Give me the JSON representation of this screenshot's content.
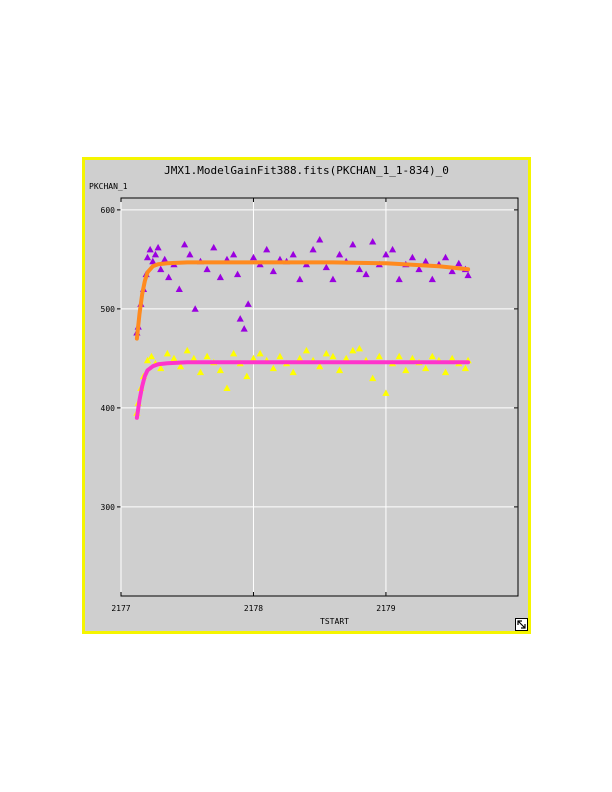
{
  "window": {
    "title": "JMX1.ModelGainFit388.fits(PKCHAN_1_1-834)_0"
  },
  "icons": {
    "resize": "resize-arrow-icon"
  },
  "chart_data": {
    "type": "scatter",
    "title": "JMX1.ModelGainFit388.fits(PKCHAN_1_1-834)_0",
    "xlabel": "TSTART",
    "ylabel": "PKCHAN_1",
    "xlim": [
      2177,
      2179.997
    ],
    "ylim": [
      210,
      612
    ],
    "xticks": [
      2177,
      2178,
      2179
    ],
    "xtick_labels": [
      "2177",
      "2178",
      "2179"
    ],
    "yticks": [
      300,
      400,
      500,
      600
    ],
    "ytick_labels": [
      "300",
      "400",
      "500",
      "600"
    ],
    "grid": true,
    "series": [
      {
        "marker": "triangle",
        "color": "#9a00e0",
        "x": [
          2177.12,
          2177.13,
          2177.15,
          2177.17,
          2177.19,
          2177.2,
          2177.22,
          2177.24,
          2177.26,
          2177.28,
          2177.3,
          2177.33,
          2177.36,
          2177.4,
          2177.44,
          2177.48,
          2177.52,
          2177.56,
          2177.6,
          2177.65,
          2177.7,
          2177.75,
          2177.8,
          2177.85,
          2177.88,
          2177.9,
          2177.93,
          2177.96,
          2178.0,
          2178.05,
          2178.1,
          2178.15,
          2178.2,
          2178.25,
          2178.3,
          2178.35,
          2178.4,
          2178.45,
          2178.5,
          2178.55,
          2178.6,
          2178.65,
          2178.7,
          2178.75,
          2178.8,
          2178.85,
          2178.9,
          2178.95,
          2179.0,
          2179.05,
          2179.1,
          2179.15,
          2179.2,
          2179.25,
          2179.3,
          2179.35,
          2179.4,
          2179.45,
          2179.5,
          2179.55,
          2179.6,
          2179.62
        ],
        "y": [
          476,
          482,
          505,
          520,
          535,
          552,
          560,
          548,
          555,
          562,
          540,
          550,
          532,
          545,
          520,
          565,
          555,
          500,
          548,
          540,
          562,
          532,
          550,
          555,
          535,
          490,
          480,
          505,
          552,
          545,
          560,
          538,
          550,
          548,
          555,
          530,
          545,
          560,
          570,
          542,
          530,
          555,
          548,
          565,
          540,
          535,
          568,
          545,
          555,
          560,
          530,
          545,
          552,
          540,
          548,
          530,
          545,
          552,
          538,
          546,
          540,
          534
        ]
      },
      {
        "marker": "triangle",
        "color": "#ffff00",
        "x": [
          2177.12,
          2177.13,
          2177.15,
          2177.17,
          2177.2,
          2177.23,
          2177.26,
          2177.3,
          2177.35,
          2177.4,
          2177.45,
          2177.5,
          2177.55,
          2177.6,
          2177.65,
          2177.7,
          2177.75,
          2177.8,
          2177.85,
          2177.9,
          2177.95,
          2178.0,
          2178.05,
          2178.1,
          2178.15,
          2178.2,
          2178.25,
          2178.3,
          2178.35,
          2178.4,
          2178.45,
          2178.5,
          2178.55,
          2178.6,
          2178.65,
          2178.7,
          2178.75,
          2178.8,
          2178.85,
          2178.9,
          2178.95,
          2179.0,
          2179.05,
          2179.1,
          2179.15,
          2179.2,
          2179.25,
          2179.3,
          2179.35,
          2179.4,
          2179.45,
          2179.5,
          2179.55,
          2179.6,
          2179.62
        ],
        "y": [
          395,
          405,
          420,
          432,
          448,
          452,
          445,
          440,
          455,
          450,
          442,
          458,
          450,
          436,
          452,
          446,
          438,
          420,
          455,
          445,
          432,
          450,
          455,
          448,
          440,
          452,
          445,
          436,
          450,
          458,
          448,
          442,
          455,
          452,
          438,
          450,
          458,
          460,
          448,
          430,
          452,
          415,
          445,
          452,
          438,
          450,
          446,
          440,
          452,
          448,
          436,
          450,
          445,
          440,
          448
        ]
      },
      {
        "marker": "line",
        "color": "#ff8a1e",
        "x": [
          2177.12,
          2177.14,
          2177.16,
          2177.18,
          2177.2,
          2177.24,
          2177.28,
          2177.35,
          2177.5,
          2177.8,
          2178.2,
          2178.6,
          2179.0,
          2179.4,
          2179.62
        ],
        "y": [
          470,
          495,
          515,
          528,
          537,
          543,
          545,
          546,
          547,
          547,
          547,
          547,
          546,
          543,
          540
        ]
      },
      {
        "marker": "line",
        "color": "#ff33cc",
        "x": [
          2177.12,
          2177.14,
          2177.16,
          2177.18,
          2177.2,
          2177.24,
          2177.28,
          2177.35,
          2177.5,
          2177.8,
          2178.2,
          2178.6,
          2179.0,
          2179.4,
          2179.62
        ],
        "y": [
          390,
          408,
          422,
          432,
          438,
          442,
          444,
          445,
          446,
          446,
          446,
          446,
          446,
          446,
          446
        ]
      }
    ]
  }
}
